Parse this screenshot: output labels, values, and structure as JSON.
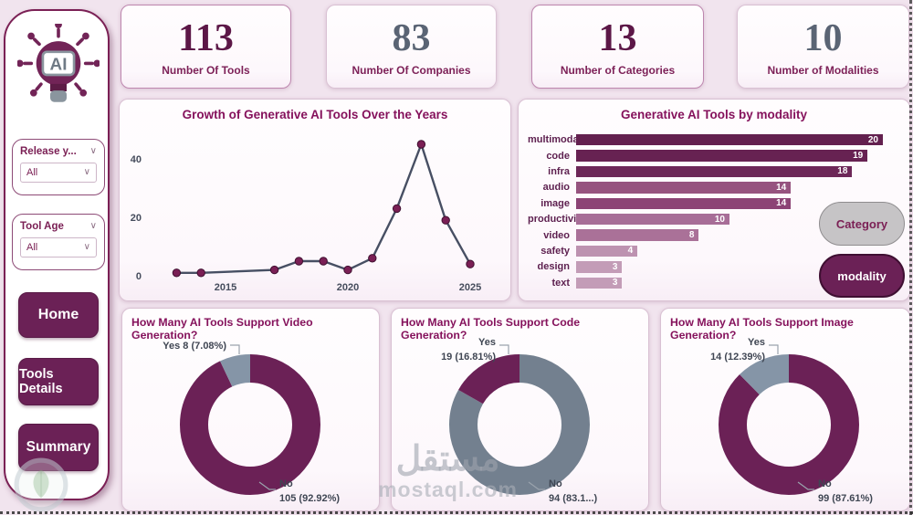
{
  "page": {
    "background": "#f1e4ee",
    "accent": "#6b2156"
  },
  "sidebar": {
    "logo_text": "AI",
    "filters": [
      {
        "label": "Release y...",
        "value": "All"
      },
      {
        "label": "Tool Age",
        "value": "All"
      }
    ],
    "nav": [
      {
        "label": "Home"
      },
      {
        "label": "Tools Details"
      },
      {
        "label": "Summary"
      }
    ]
  },
  "kpis": [
    {
      "value": "113",
      "label": "Number Of Tools",
      "color": "#5c1747"
    },
    {
      "value": "83",
      "label": "Number Of Companies",
      "color": "#5a6474"
    },
    {
      "value": "13",
      "label": "Number of Categories",
      "color": "#5c1747"
    },
    {
      "value": "10",
      "label": "Number of Modalities",
      "color": "#5a6474"
    }
  ],
  "chart_data": [
    {
      "type": "line",
      "title": "Growth of Generative AI Tools Over the Years",
      "x": [
        2013,
        2014,
        2017,
        2018,
        2019,
        2020,
        2021,
        2022,
        2023,
        2024,
        2025
      ],
      "values": [
        1,
        1,
        2,
        5,
        5,
        2,
        6,
        23,
        45,
        19,
        4
      ],
      "x_ticks": [
        2015,
        2020,
        2025
      ],
      "y_ticks": [
        0,
        20,
        40
      ],
      "ylim": [
        0,
        50
      ],
      "grid": false,
      "line_color": "#474f63",
      "marker_color": "#7a1f55"
    },
    {
      "type": "bar",
      "orientation": "horizontal",
      "title": "Generative AI Tools by modality",
      "categories": [
        "multimodal",
        "code",
        "infra",
        "audio",
        "image",
        "productivity",
        "video",
        "safety",
        "design",
        "text"
      ],
      "values": [
        20,
        19,
        18,
        14,
        14,
        10,
        8,
        4,
        3,
        3
      ],
      "bar_colors": [
        "#63204f",
        "#672252",
        "#6d2758",
        "#96537f",
        "#8c4375",
        "#a76d97",
        "#aa7198",
        "#bd92b0",
        "#c39cb7",
        "#c39cb7"
      ],
      "xlim": [
        0,
        20
      ],
      "buttons": [
        "Category",
        "modality"
      ]
    },
    {
      "type": "donut",
      "title": "How Many AI Tools Support Video Generation?",
      "slices": [
        {
          "label": "No",
          "value": 105,
          "pct": 92.92,
          "color": "#6b2156"
        },
        {
          "label": "Yes",
          "value": 8,
          "pct": 7.08,
          "color": "#8595a7"
        }
      ],
      "callouts": {
        "yes_lines": [
          "Yes 8 (7.08%)"
        ],
        "no_lines": [
          "No",
          "105 (92.92%)"
        ]
      }
    },
    {
      "type": "donut",
      "title": "How Many AI Tools Support Code Generation?",
      "slices": [
        {
          "label": "No",
          "value": 94,
          "pct": 83.19,
          "color": "#73808f"
        },
        {
          "label": "Yes",
          "value": 19,
          "pct": 16.81,
          "color": "#6b2156"
        }
      ],
      "callouts": {
        "yes_lines": [
          "Yes",
          "19 (16.81%)"
        ],
        "no_lines": [
          "No",
          "94 (83.1...)"
        ]
      }
    },
    {
      "type": "donut",
      "title": "How Many AI Tools Support Image Generation?",
      "slices": [
        {
          "label": "No",
          "value": 99,
          "pct": 87.61,
          "color": "#6b2156"
        },
        {
          "label": "Yes",
          "value": 14,
          "pct": 12.39,
          "color": "#8595a7"
        }
      ],
      "callouts": {
        "yes_lines": [
          "Yes",
          "14 (12.39%)"
        ],
        "no_lines": [
          "No",
          "99 (87.61%)"
        ]
      }
    }
  ],
  "watermark": {
    "brand_ar": "مستقل",
    "brand_domain": "mostaql.com"
  }
}
